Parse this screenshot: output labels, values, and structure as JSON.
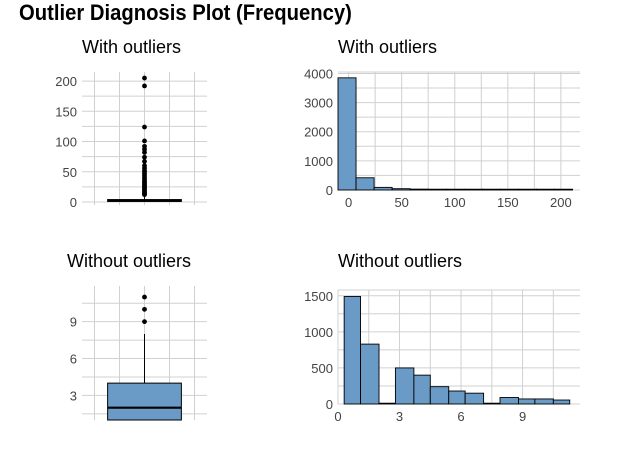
{
  "title": "Outlier Diagnosis Plot (Frequency)",
  "colors": {
    "fill": "#6a9ac6",
    "grid": "#d0d0d0",
    "text": "#444444"
  },
  "chart_data": [
    {
      "type": "box",
      "panel": "top-left",
      "title": "With outliers",
      "ylim": [
        -5,
        215
      ],
      "yticks": [
        0,
        50,
        100,
        150,
        200
      ],
      "box": {
        "q1": 1,
        "median": 2,
        "q3": 4
      },
      "whisker": {
        "low": 0,
        "high": 11
      },
      "outliers": [
        205,
        192,
        124,
        101,
        92,
        87,
        82,
        74,
        67,
        60,
        56,
        52,
        50,
        47,
        44,
        41,
        38,
        35,
        33,
        31,
        29,
        27,
        25,
        23,
        21,
        19,
        17,
        15,
        14,
        13,
        12
      ]
    },
    {
      "type": "bar",
      "panel": "top-right",
      "title": "With outliers",
      "xlim": [
        -10,
        218
      ],
      "ylim": [
        0,
        4050
      ],
      "xticks": [
        0,
        50,
        100,
        150,
        200
      ],
      "yticks": [
        0,
        1000,
        2000,
        3000,
        4000
      ],
      "bins": [
        {
          "x0": -10,
          "x1": 7,
          "count": 3850
        },
        {
          "x0": 7,
          "x1": 24,
          "count": 420
        },
        {
          "x0": 24,
          "x1": 41,
          "count": 90
        },
        {
          "x0": 41,
          "x1": 58,
          "count": 45
        },
        {
          "x0": 58,
          "x1": 75,
          "count": 30
        },
        {
          "x0": 75,
          "x1": 92,
          "count": 20
        },
        {
          "x0": 92,
          "x1": 109,
          "count": 10
        },
        {
          "x0": 109,
          "x1": 126,
          "count": 6
        },
        {
          "x0": 126,
          "x1": 143,
          "count": 3
        },
        {
          "x0": 143,
          "x1": 160,
          "count": 2
        },
        {
          "x0": 160,
          "x1": 177,
          "count": 2
        },
        {
          "x0": 177,
          "x1": 194,
          "count": 2
        },
        {
          "x0": 194,
          "x1": 211,
          "count": 3
        }
      ]
    },
    {
      "type": "box",
      "panel": "bottom-left",
      "title": "Without outliers",
      "ylim": [
        1.0,
        11.9
      ],
      "yticks": [
        3,
        6,
        9
      ],
      "box": {
        "q1": 1,
        "median": 2,
        "q3": 4
      },
      "whisker": {
        "low": 1,
        "high": 8
      },
      "outliers": [
        11,
        10,
        9
      ]
    },
    {
      "type": "bar",
      "panel": "bottom-right",
      "title": "Without outliers",
      "xlim": [
        0,
        11.8
      ],
      "ylim": [
        0,
        1580
      ],
      "xticks": [
        0,
        3,
        6,
        9
      ],
      "yticks": [
        0,
        500,
        1000,
        1500
      ],
      "bins": [
        {
          "x0": 0.3,
          "x1": 1.1,
          "count": 1490
        },
        {
          "x0": 1.1,
          "x1": 2.0,
          "count": 830
        },
        {
          "x0": 2.0,
          "x1": 2.8,
          "count": 0
        },
        {
          "x0": 2.8,
          "x1": 3.7,
          "count": 500
        },
        {
          "x0": 3.7,
          "x1": 4.5,
          "count": 400
        },
        {
          "x0": 4.5,
          "x1": 5.4,
          "count": 240
        },
        {
          "x0": 5.4,
          "x1": 6.2,
          "count": 180
        },
        {
          "x0": 6.2,
          "x1": 7.1,
          "count": 150
        },
        {
          "x0": 7.1,
          "x1": 7.9,
          "count": 0
        },
        {
          "x0": 7.9,
          "x1": 8.8,
          "count": 90
        },
        {
          "x0": 8.8,
          "x1": 9.6,
          "count": 70
        },
        {
          "x0": 9.6,
          "x1": 10.5,
          "count": 70
        },
        {
          "x0": 10.5,
          "x1": 11.3,
          "count": 55
        }
      ]
    }
  ]
}
